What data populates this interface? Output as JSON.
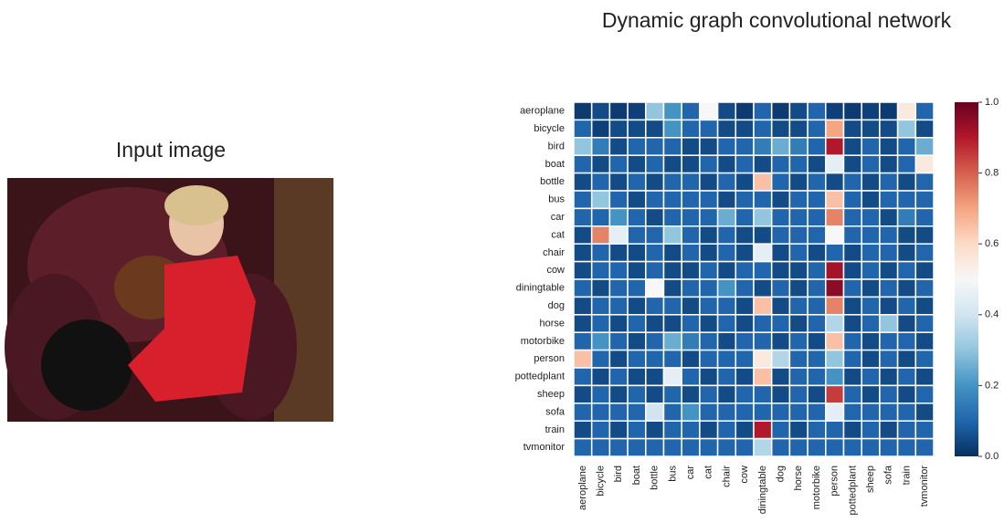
{
  "input_panel": {
    "title": "Input image"
  },
  "chart_data": {
    "type": "heatmap",
    "title": "Dynamic graph convolutional network",
    "categories": [
      "aeroplane",
      "bicycle",
      "bird",
      "boat",
      "bottle",
      "bus",
      "car",
      "cat",
      "chair",
      "cow",
      "diningtable",
      "dog",
      "horse",
      "motorbike",
      "person",
      "pottedplant",
      "sheep",
      "sofa",
      "train",
      "tvmonitor"
    ],
    "values": [
      [
        0.02,
        0.05,
        0.02,
        0.03,
        0.3,
        0.2,
        0.1,
        0.5,
        0.05,
        0.02,
        0.1,
        0.02,
        0.05,
        0.1,
        0.03,
        0.02,
        0.03,
        0.02,
        0.55,
        0.1
      ],
      [
        0.1,
        0.03,
        0.05,
        0.05,
        0.05,
        0.2,
        0.1,
        0.1,
        0.05,
        0.05,
        0.1,
        0.05,
        0.05,
        0.1,
        0.7,
        0.05,
        0.05,
        0.05,
        0.3,
        0.05
      ],
      [
        0.3,
        0.15,
        0.05,
        0.1,
        0.1,
        0.1,
        0.05,
        0.05,
        0.1,
        0.1,
        0.15,
        0.25,
        0.15,
        0.1,
        0.9,
        0.05,
        0.1,
        0.05,
        0.1,
        0.25
      ],
      [
        0.1,
        0.05,
        0.1,
        0.05,
        0.1,
        0.05,
        0.05,
        0.1,
        0.05,
        0.1,
        0.05,
        0.1,
        0.1,
        0.05,
        0.45,
        0.05,
        0.1,
        0.05,
        0.1,
        0.55
      ],
      [
        0.05,
        0.1,
        0.05,
        0.1,
        0.05,
        0.1,
        0.1,
        0.05,
        0.1,
        0.05,
        0.65,
        0.1,
        0.05,
        0.1,
        0.05,
        0.1,
        0.05,
        0.1,
        0.05,
        0.1
      ],
      [
        0.1,
        0.3,
        0.1,
        0.05,
        0.1,
        0.1,
        0.1,
        0.1,
        0.05,
        0.1,
        0.1,
        0.05,
        0.1,
        0.1,
        0.65,
        0.1,
        0.05,
        0.1,
        0.1,
        0.1
      ],
      [
        0.1,
        0.1,
        0.2,
        0.1,
        0.05,
        0.1,
        0.1,
        0.1,
        0.25,
        0.1,
        0.3,
        0.1,
        0.1,
        0.1,
        0.75,
        0.1,
        0.1,
        0.05,
        0.15,
        0.1
      ],
      [
        0.05,
        0.75,
        0.45,
        0.1,
        0.1,
        0.3,
        0.1,
        0.05,
        0.1,
        0.05,
        0.05,
        0.1,
        0.1,
        0.1,
        0.5,
        0.1,
        0.1,
        0.1,
        0.05,
        0.05
      ],
      [
        0.05,
        0.1,
        0.05,
        0.05,
        0.1,
        0.05,
        0.1,
        0.05,
        0.1,
        0.05,
        0.45,
        0.05,
        0.1,
        0.05,
        0.1,
        0.05,
        0.1,
        0.1,
        0.05,
        0.1
      ],
      [
        0.05,
        0.1,
        0.1,
        0.05,
        0.1,
        0.05,
        0.05,
        0.1,
        0.05,
        0.1,
        0.1,
        0.05,
        0.05,
        0.1,
        0.92,
        0.05,
        0.1,
        0.05,
        0.1,
        0.05
      ],
      [
        0.1,
        0.05,
        0.1,
        0.1,
        0.5,
        0.05,
        0.1,
        0.1,
        0.2,
        0.1,
        0.05,
        0.1,
        0.05,
        0.1,
        0.95,
        0.1,
        0.05,
        0.1,
        0.05,
        0.1
      ],
      [
        0.05,
        0.1,
        0.1,
        0.05,
        0.1,
        0.1,
        0.05,
        0.1,
        0.1,
        0.05,
        0.65,
        0.05,
        0.1,
        0.1,
        0.75,
        0.05,
        0.1,
        0.05,
        0.1,
        0.05
      ],
      [
        0.05,
        0.1,
        0.05,
        0.1,
        0.05,
        0.05,
        0.1,
        0.05,
        0.1,
        0.05,
        0.1,
        0.1,
        0.05,
        0.1,
        0.35,
        0.05,
        0.1,
        0.3,
        0.05,
        0.1
      ],
      [
        0.1,
        0.2,
        0.1,
        0.05,
        0.1,
        0.25,
        0.15,
        0.1,
        0.05,
        0.1,
        0.1,
        0.05,
        0.1,
        0.05,
        0.65,
        0.1,
        0.05,
        0.1,
        0.1,
        0.05
      ],
      [
        0.65,
        0.1,
        0.05,
        0.1,
        0.1,
        0.1,
        0.05,
        0.1,
        0.1,
        0.1,
        0.55,
        0.35,
        0.1,
        0.1,
        0.3,
        0.1,
        0.05,
        0.1,
        0.05,
        0.1
      ],
      [
        0.1,
        0.05,
        0.1,
        0.05,
        0.05,
        0.45,
        0.1,
        0.05,
        0.1,
        0.05,
        0.65,
        0.05,
        0.1,
        0.1,
        0.2,
        0.05,
        0.1,
        0.05,
        0.1,
        0.05
      ],
      [
        0.05,
        0.1,
        0.05,
        0.1,
        0.05,
        0.1,
        0.05,
        0.1,
        0.05,
        0.1,
        0.1,
        0.05,
        0.1,
        0.05,
        0.85,
        0.1,
        0.05,
        0.1,
        0.05,
        0.1
      ],
      [
        0.1,
        0.1,
        0.1,
        0.1,
        0.4,
        0.1,
        0.2,
        0.1,
        0.1,
        0.1,
        0.1,
        0.1,
        0.1,
        0.1,
        0.45,
        0.1,
        0.1,
        0.1,
        0.1,
        0.05
      ],
      [
        0.05,
        0.1,
        0.05,
        0.1,
        0.05,
        0.1,
        0.1,
        0.05,
        0.1,
        0.05,
        0.9,
        0.1,
        0.05,
        0.1,
        0.1,
        0.05,
        0.1,
        0.05,
        0.1,
        0.1
      ],
      [
        0.1,
        0.1,
        0.1,
        0.1,
        0.1,
        0.1,
        0.1,
        0.1,
        0.1,
        0.1,
        0.35,
        0.1,
        0.1,
        0.1,
        0.1,
        0.1,
        0.1,
        0.1,
        0.1,
        0.1
      ]
    ],
    "colorbar": {
      "lim": [
        0,
        1
      ],
      "ticks": [
        {
          "value": 0,
          "label": "0.0"
        },
        {
          "value": 0.2,
          "label": "0.2"
        },
        {
          "value": 0.4,
          "label": "0.4"
        },
        {
          "value": 0.6,
          "label": "0.6"
        },
        {
          "value": 0.8,
          "label": "0.8"
        },
        {
          "value": 1,
          "label": "1.0"
        }
      ]
    }
  }
}
